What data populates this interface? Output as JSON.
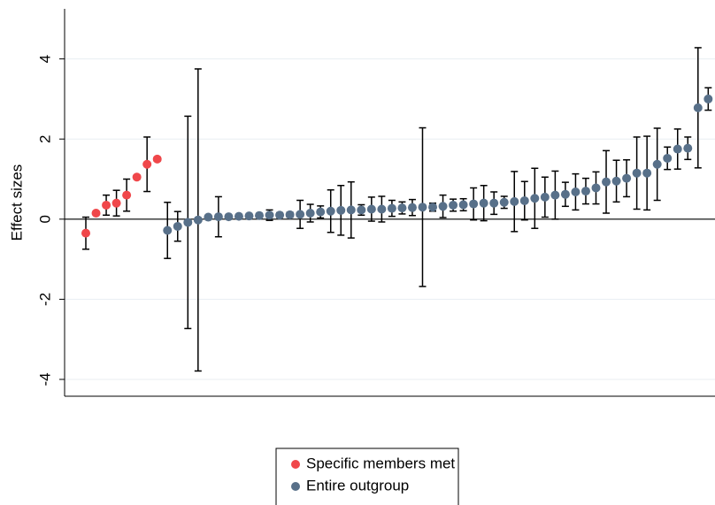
{
  "chart_data": {
    "type": "errorbar",
    "ylabel": "Effect sizes",
    "ylim": [
      -4.42,
      5.25
    ],
    "yticks": [
      -4,
      -2,
      0,
      2,
      4
    ],
    "grid": true,
    "series": [
      {
        "name": "Specific members met",
        "color": "#f0474a",
        "values": [
          -0.35,
          0.15,
          0.35,
          0.4,
          0.6,
          1.05,
          1.37,
          1.5
        ],
        "errors": [
          0.4,
          0.05,
          0.25,
          0.32,
          0.4,
          0.05,
          0.68,
          0.05
        ]
      },
      {
        "name": "Entire outgroup",
        "color": "#587089",
        "values": [
          -0.28,
          -0.18,
          -0.08,
          -0.02,
          0.05,
          0.06,
          0.06,
          0.07,
          0.08,
          0.09,
          0.1,
          0.1,
          0.11,
          0.12,
          0.15,
          0.18,
          0.2,
          0.22,
          0.23,
          0.23,
          0.25,
          0.25,
          0.27,
          0.28,
          0.29,
          0.3,
          0.3,
          0.32,
          0.35,
          0.36,
          0.38,
          0.4,
          0.4,
          0.42,
          0.44,
          0.46,
          0.52,
          0.55,
          0.6,
          0.62,
          0.68,
          0.7,
          0.78,
          0.93,
          0.95,
          1.02,
          1.15,
          1.15,
          1.37,
          1.52,
          1.75,
          1.77,
          2.78,
          3.0
        ],
        "errors": [
          0.7,
          0.37,
          2.65,
          3.77,
          0.03,
          0.5,
          0.03,
          0.03,
          0.04,
          0.04,
          0.13,
          0.06,
          0.06,
          0.35,
          0.22,
          0.15,
          0.53,
          0.62,
          0.7,
          0.13,
          0.3,
          0.32,
          0.2,
          0.15,
          0.2,
          1.98,
          0.1,
          0.28,
          0.15,
          0.15,
          0.4,
          0.44,
          0.28,
          0.15,
          0.75,
          0.48,
          0.75,
          0.5,
          0.6,
          0.3,
          0.45,
          0.32,
          0.4,
          0.78,
          0.52,
          0.46,
          0.9,
          0.92,
          0.9,
          0.28,
          0.5,
          0.28,
          1.5,
          0.28
        ]
      }
    ]
  }
}
